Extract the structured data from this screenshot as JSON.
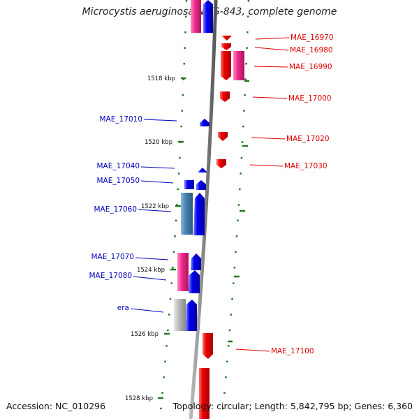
{
  "title": "Microcystis aeruginosa NIES-843, complete genome",
  "accession": "Accession: NC_010296",
  "topology": "Topology: circular; Length: 5,842,795 bp; Genes: 6,360",
  "colors": {
    "forward_cds": "#0000ee",
    "reverse_cds": "#ee0000",
    "pink_feature": "#ee2b8a",
    "steel_feature": "#4682b4",
    "grey_feature": "#bbbbbb",
    "backbone": "#888888",
    "ticks": "#1e7a1e",
    "label_left": "#0000bb",
    "label_right": "#dd0000"
  },
  "scale_labels": [
    "1518 kbp",
    "1520 kbp",
    "1522 kbp",
    "1524 kbp",
    "1526 kbp",
    "1528 kbp"
  ],
  "genes_left": [
    "MAE_17010",
    "MAE_17040",
    "MAE_17050",
    "MAE_17060",
    "MAE_17070",
    "MAE_17080",
    "era"
  ],
  "genes_right": [
    "MAE_16970",
    "MAE_16980",
    "MAE_16990",
    "MAE_17000",
    "MAE_17020",
    "MAE_17030",
    "MAE_17100"
  ]
}
